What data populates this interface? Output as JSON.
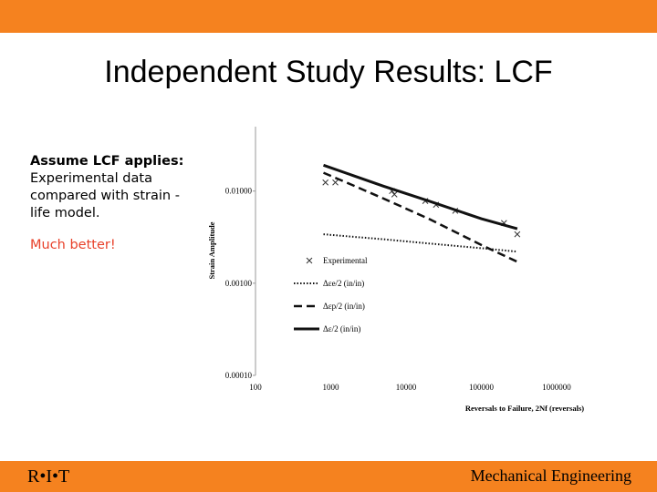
{
  "slide": {
    "title": "Independent Study Results: LCF",
    "text_lead": "Assume LCF applies:",
    "text_body": "Experimental data compared with strain -life model.",
    "text_emphasis": "Much better!",
    "footer_left": "R•I•T",
    "footer_right": "Mechanical Engineering",
    "accent_color": "#f5821f",
    "emphasis_color": "#e8412a"
  },
  "chart_data": {
    "type": "scatter",
    "xscale": "log",
    "yscale": "log",
    "xlim": [
      100,
      1000000
    ],
    "ylim": [
      0.0001,
      0.05
    ],
    "xlabel": "Reversals to Failure, 2Nf (reversals)",
    "ylabel": "Strain Amplitude",
    "x_tick_labels": [
      "100",
      "1000",
      "10000",
      "100000",
      "1000000"
    ],
    "y_tick_labels": [
      "0.00010",
      "0.00100",
      "0.01000"
    ],
    "legend_position": "inside-bottom",
    "series": [
      {
        "name": "Experimental",
        "kind": "markers",
        "points": [
          [
            850,
            0.0124
          ],
          [
            1150,
            0.0124
          ],
          [
            6500,
            0.01
          ],
          [
            7000,
            0.0092
          ],
          [
            18000,
            0.0078
          ],
          [
            25000,
            0.0071
          ],
          [
            45000,
            0.0061
          ],
          [
            200000,
            0.0045
          ],
          [
            300000,
            0.0034
          ]
        ]
      },
      {
        "name": "Δεe/2 (in/in)",
        "kind": "dotted",
        "points": [
          [
            800,
            0.0034
          ],
          [
            2000,
            0.00319
          ],
          [
            5000,
            0.003
          ],
          [
            20000,
            0.0027
          ],
          [
            100000,
            0.0024
          ],
          [
            300000,
            0.0022
          ]
        ]
      },
      {
        "name": "Δεp/2 (in/in)",
        "kind": "dashed",
        "points": [
          [
            800,
            0.0158
          ],
          [
            2000,
            0.0115
          ],
          [
            5000,
            0.0083
          ],
          [
            20000,
            0.005
          ],
          [
            100000,
            0.0026
          ],
          [
            300000,
            0.00171
          ]
        ]
      },
      {
        "name": "Δε/2 (in/in)",
        "kind": "solid",
        "points": [
          [
            800,
            0.0191
          ],
          [
            2000,
            0.0147
          ],
          [
            5000,
            0.0113
          ],
          [
            20000,
            0.0078
          ],
          [
            100000,
            0.005
          ],
          [
            300000,
            0.0039
          ]
        ]
      }
    ]
  }
}
